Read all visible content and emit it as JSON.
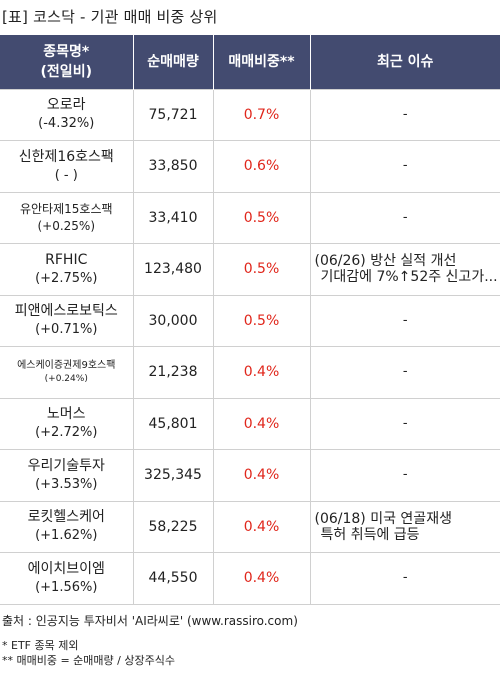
{
  "title": "[표] 코스닥 - 기관 매매 비중 상위",
  "headers": {
    "name_line1": "종목명*",
    "name_line2": "(전일비)",
    "volume": "순매매량",
    "ratio": "매매비중**",
    "issue": "최근 이슈"
  },
  "rows": [
    {
      "name": "오로라",
      "change": "(-4.32%)",
      "volume": "75,721",
      "ratio": "0.7%",
      "issue": [
        "-"
      ]
    },
    {
      "name": "신한제16호스팩",
      "change": "( - )",
      "volume": "33,850",
      "ratio": "0.6%",
      "issue": [
        "-"
      ]
    },
    {
      "name": "유안타제15호스팩",
      "change": "(+0.25%)",
      "volume": "33,410",
      "ratio": "0.5%",
      "issue": [
        "-"
      ]
    },
    {
      "name": "RFHIC",
      "change": "(+2.75%)",
      "volume": "123,480",
      "ratio": "0.5%",
      "issue": [
        "(06/26) 방산 실적 개선",
        "기대감에 7%↑52주 신고가..."
      ]
    },
    {
      "name": "피앤에스로보틱스",
      "change": "(+0.71%)",
      "volume": "30,000",
      "ratio": "0.5%",
      "issue": [
        "-"
      ]
    },
    {
      "name": "에스케이증권제9호스팩",
      "change": "(+0.24%)",
      "volume": "21,238",
      "ratio": "0.4%",
      "issue": [
        "-"
      ]
    },
    {
      "name": "노머스",
      "change": "(+2.72%)",
      "volume": "45,801",
      "ratio": "0.4%",
      "issue": [
        "-"
      ]
    },
    {
      "name": "우리기술투자",
      "change": "(+3.53%)",
      "volume": "325,345",
      "ratio": "0.4%",
      "issue": [
        "-"
      ]
    },
    {
      "name": "로킷헬스케어",
      "change": "(+1.62%)",
      "volume": "58,225",
      "ratio": "0.4%",
      "issue": [
        "(06/18) 미국 연골재생",
        "특허 취득에 급등"
      ]
    },
    {
      "name": "에이치브이엠",
      "change": "(+1.56%)",
      "volume": "44,550",
      "ratio": "0.4%",
      "issue": [
        "-"
      ]
    }
  ],
  "footer": {
    "source": "출처 : 인공지능 투자비서 'AI라씨로' (www.rassiro.com)",
    "note1": "* ETF 종목 제외",
    "note2": "** 매매비중 = 순매매량 / 상장주식수"
  },
  "colors": {
    "header_bg": "#434b70",
    "ratio_text": "#e0261b"
  }
}
